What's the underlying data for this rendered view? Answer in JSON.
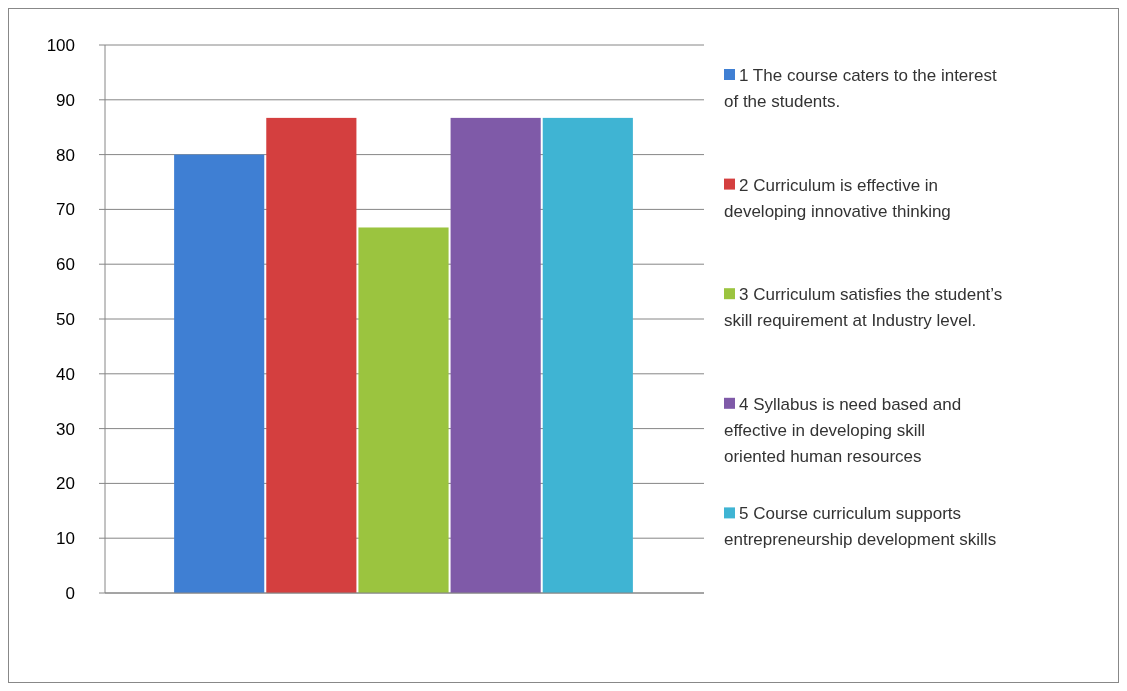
{
  "chart_data": {
    "type": "bar",
    "categories": [
      null
    ],
    "series": [
      {
        "name": "1 The course caters to the interest of the students.",
        "color": "#3f7fd3",
        "values": [
          80
        ]
      },
      {
        "name": "2 Curriculum is effective in developing innovative thinking",
        "color": "#d43f3f",
        "values": [
          86.7
        ]
      },
      {
        "name": "3 Curriculum satisfies the student’s skill requirement at Industry level.",
        "color": "#9bc43f",
        "values": [
          66.7
        ]
      },
      {
        "name": "4 Syllabus is need based and effective in developing skill oriented human resources",
        "color": "#7f5aa8",
        "values": [
          86.7
        ]
      },
      {
        "name": "5 Course curriculum supports entrepreneurship development skills",
        "color": "#3fb4d3",
        "values": [
          86.7
        ]
      }
    ],
    "ylim": [
      0,
      100
    ],
    "yticks": [
      0,
      10,
      20,
      30,
      40,
      50,
      60,
      70,
      80,
      90,
      100
    ],
    "grid": "y",
    "legend": "right"
  }
}
